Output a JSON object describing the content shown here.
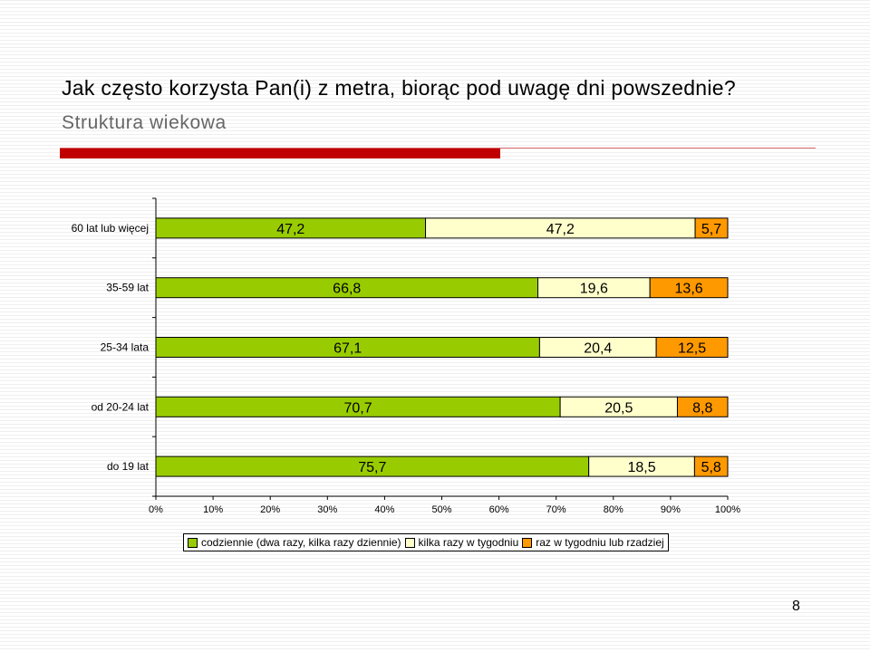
{
  "slide": {
    "title": "Jak często korzysta Pan(i) z metra, biorąc pod uwagę dni powszednie?",
    "subtitle": "Struktura wiekowa",
    "page_number": "8",
    "accent_color": "#c00000",
    "rule_color": "#d96a6a"
  },
  "chart_data": {
    "type": "bar",
    "orientation": "horizontal",
    "stacked": "percent",
    "title": "",
    "xlabel": "",
    "ylabel": "",
    "xlim": [
      0,
      100
    ],
    "x_tick_labels": [
      "0%",
      "10%",
      "20%",
      "30%",
      "40%",
      "50%",
      "60%",
      "70%",
      "80%",
      "90%",
      "100%"
    ],
    "grid": false,
    "legend_position": "bottom",
    "categories": [
      "60 lat lub więcej",
      "35-59 lat",
      "25-34 lata",
      "od 20-24 lat",
      "do 19 lat"
    ],
    "series": [
      {
        "name": "codziennie (dwa razy, kilka razy dziennie)",
        "color": "#99cc00",
        "values": [
          47.2,
          66.8,
          67.1,
          70.7,
          75.7
        ],
        "labels": [
          "47,2",
          "66,8",
          "67,1",
          "70,7",
          "75,7"
        ]
      },
      {
        "name": "kilka razy w tygodniu",
        "color": "#ffffcc",
        "values": [
          47.2,
          19.6,
          20.4,
          20.5,
          18.5
        ],
        "labels": [
          "47,2",
          "19,6",
          "20,4",
          "20,5",
          "18,5"
        ]
      },
      {
        "name": "raz w tygodniu lub rzadziej",
        "color": "#ff9900",
        "values": [
          5.7,
          13.6,
          12.5,
          8.8,
          5.8
        ],
        "labels": [
          "5,7",
          "13,6",
          "12,5",
          "8,8",
          "5,8"
        ]
      }
    ]
  }
}
